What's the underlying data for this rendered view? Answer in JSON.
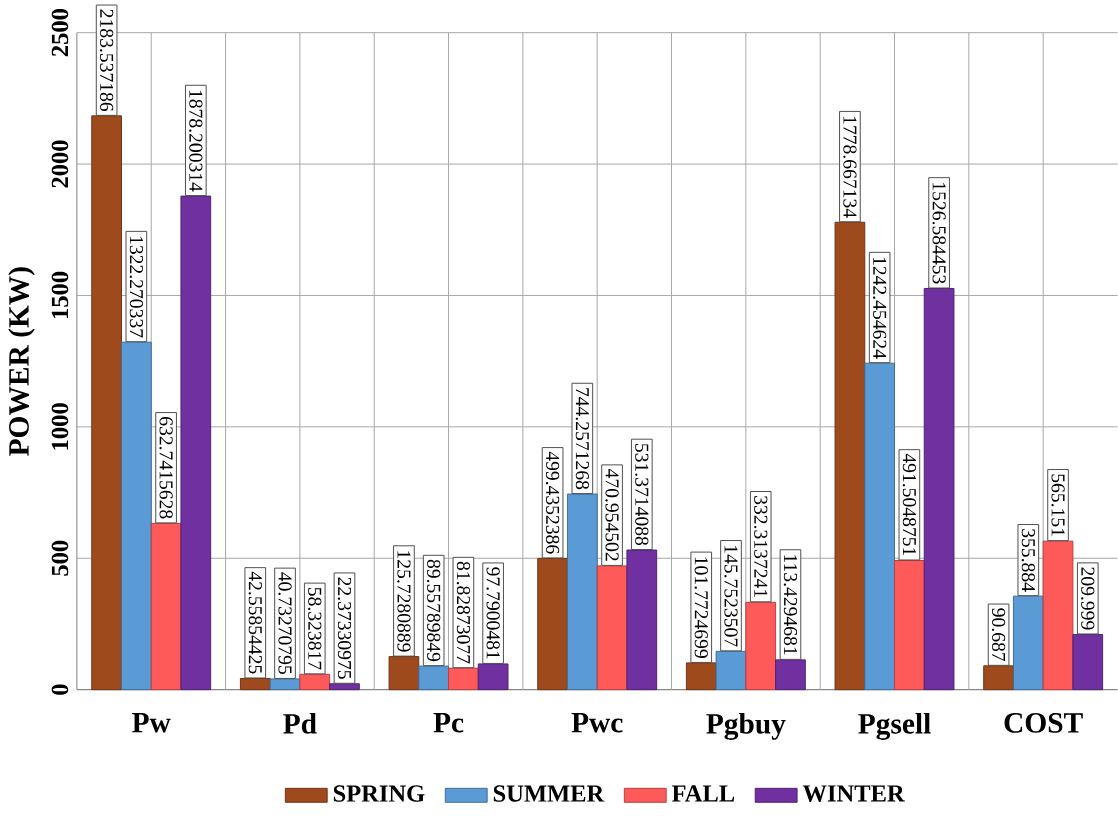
{
  "chart_data": {
    "type": "bar",
    "ylabel": "POWER (KW)",
    "categories": [
      "Pw",
      "Pd",
      "Pc",
      "Pwc",
      "Pgbuy",
      "Pgsell",
      "COST"
    ],
    "series": [
      {
        "name": "SPRING",
        "color": "#9e4a1c",
        "values": [
          2183.537186,
          42.55854425,
          125.7280889,
          499.4352386,
          101.7724699,
          1778.667134,
          90.687
        ],
        "value_labels": [
          "2183.537186",
          "42.55854425",
          "125.7280889",
          "499.4352386",
          "101.7724699",
          "1778.667134",
          "90.687"
        ]
      },
      {
        "name": "SUMMER",
        "color": "#5b9bd5",
        "values": [
          1322.270337,
          40.73270795,
          89.55789849,
          744.2571268,
          145.7523507,
          1242.454624,
          355.884
        ],
        "value_labels": [
          "1322.270337",
          "40.73270795",
          "89.55789849",
          "744.2571268",
          "145.7523507",
          "1242.454624",
          "355.884"
        ]
      },
      {
        "name": "FALL",
        "color": "#ff5a5a",
        "values": [
          632.7415628,
          58.323817,
          81.82873077,
          470.954502,
          332.3137241,
          491.5048751,
          565.151
        ],
        "value_labels": [
          "632.7415628",
          "58.323817",
          "81.82873077",
          "470.954502",
          "332.3137241",
          "491.5048751",
          "565.151"
        ]
      },
      {
        "name": "WINTER",
        "color": "#7030a0",
        "values": [
          1878.200314,
          22.37330975,
          97.7900481,
          531.3714088,
          113.4294681,
          1526.584453,
          209.999
        ],
        "value_labels": [
          "1878.200314",
          "22.37330975",
          "97.7900481",
          "531.3714088",
          "113.4294681",
          "1526.584453",
          "209.999"
        ]
      }
    ],
    "ylim": [
      0,
      2500
    ],
    "yticks": [
      0,
      500,
      1000,
      1500,
      2000,
      2500
    ],
    "grid": true,
    "legend": "bottom"
  }
}
